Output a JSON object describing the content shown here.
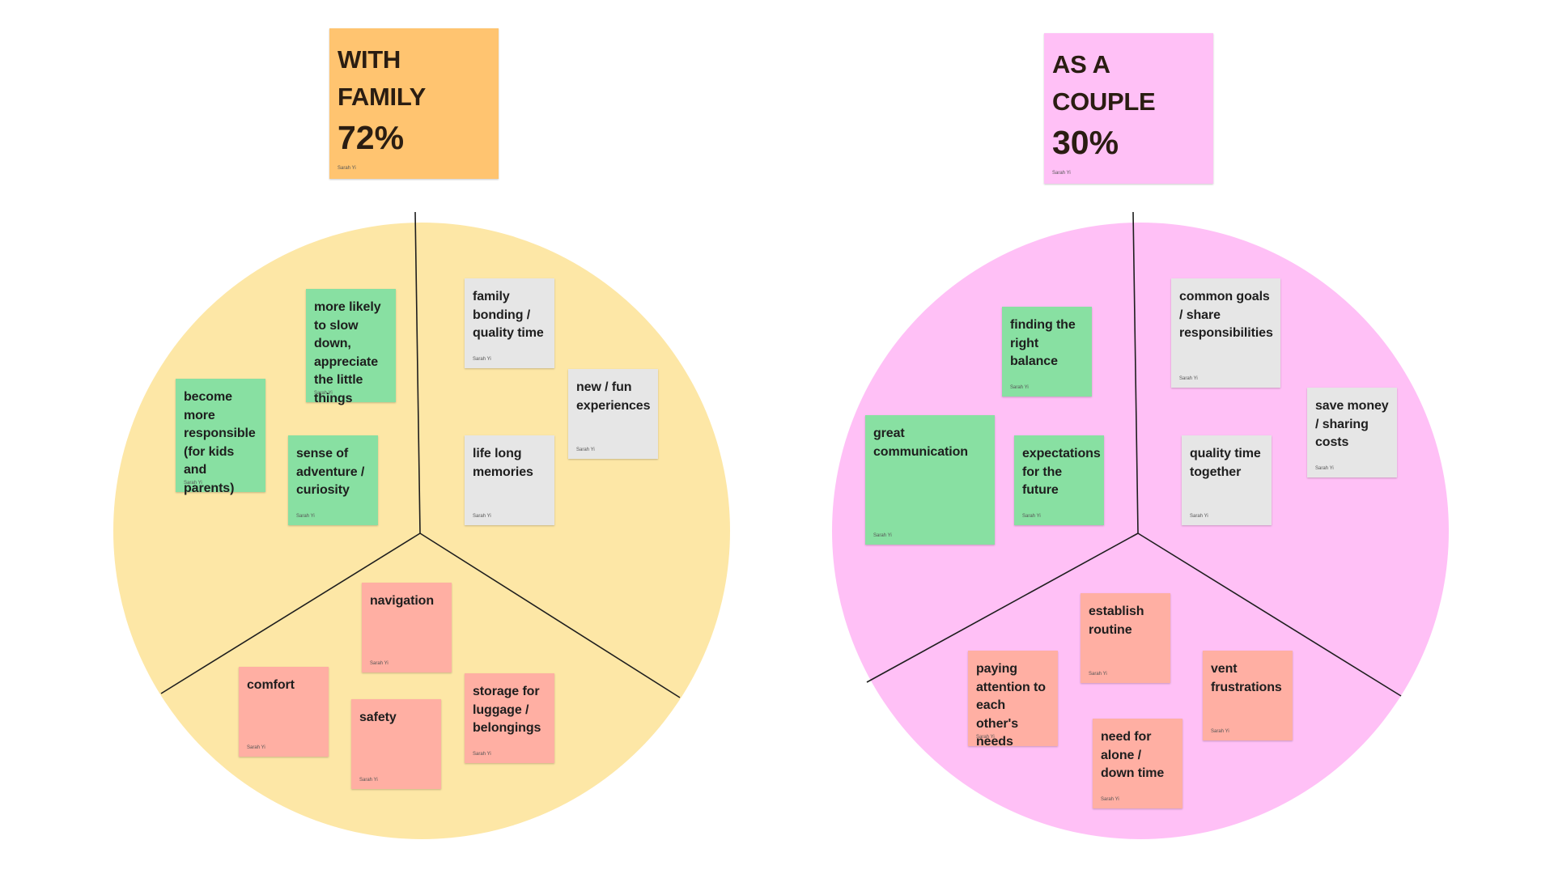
{
  "family": {
    "title": "WITH FAMILY",
    "percent": "72%",
    "author": "Sarah Yi",
    "disc_color": "#fde7a6",
    "title_color": "#ffc470",
    "notes": [
      {
        "text": "more likely to slow down, appreciate the little things",
        "author": "Sarah Yi",
        "color": "green"
      },
      {
        "text": "become more responsible (for kids and parents)",
        "author": "Sarah Yi",
        "color": "green"
      },
      {
        "text": "sense of adventure / curiosity",
        "author": "Sarah Yi",
        "color": "green"
      },
      {
        "text": "family bonding / quality time",
        "author": "Sarah Yi",
        "color": "grey"
      },
      {
        "text": "new / fun experiences",
        "author": "Sarah Yi",
        "color": "grey"
      },
      {
        "text": "life long memories",
        "author": "Sarah Yi",
        "color": "grey"
      },
      {
        "text": "navigation",
        "author": "Sarah Yi",
        "color": "salmon"
      },
      {
        "text": "comfort",
        "author": "Sarah Yi",
        "color": "salmon"
      },
      {
        "text": "safety",
        "author": "Sarah Yi",
        "color": "salmon"
      },
      {
        "text": "storage for luggage / belongings",
        "author": "Sarah Yi",
        "color": "salmon"
      }
    ]
  },
  "couple": {
    "title": "AS A COUPLE",
    "percent": "30%",
    "author": "Sarah Yi",
    "disc_color": "#ffc0f6",
    "title_color": "#ffc0f6",
    "notes": [
      {
        "text": "finding the right balance",
        "author": "Sarah Yi",
        "color": "green"
      },
      {
        "text": "great communication",
        "author": "Sarah Yi",
        "color": "green"
      },
      {
        "text": "expectations for the future",
        "author": "Sarah Yi",
        "color": "green"
      },
      {
        "text": "common goals / share responsibilities",
        "author": "Sarah Yi",
        "color": "grey"
      },
      {
        "text": "save money / sharing costs",
        "author": "Sarah Yi",
        "color": "grey"
      },
      {
        "text": "quality time together",
        "author": "Sarah Yi",
        "color": "grey"
      },
      {
        "text": "establish routine",
        "author": "Sarah Yi",
        "color": "salmon"
      },
      {
        "text": "paying attention to each other's needs",
        "author": "Sarah Yi",
        "color": "salmon"
      },
      {
        "text": "vent frustrations",
        "author": "Sarah Yi",
        "color": "salmon"
      },
      {
        "text": "need for alone / down time",
        "author": "Sarah Yi",
        "color": "salmon"
      }
    ]
  },
  "colors": {
    "green": "#88e0a2",
    "grey": "#e6e6e6",
    "salmon": "#ffafa3",
    "divider": "#1e1e1e"
  }
}
